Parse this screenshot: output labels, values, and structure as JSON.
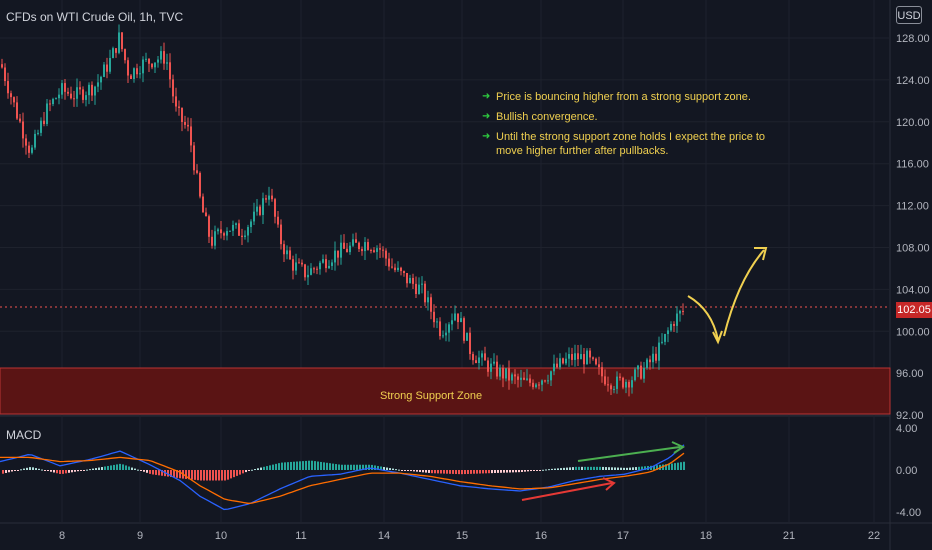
{
  "header": {
    "title": "CFDs on WTI Crude Oil, 1h, TVC",
    "currency": "USD"
  },
  "price_axis": {
    "ticks": [
      "128.00",
      "124.00",
      "120.00",
      "116.00",
      "112.00",
      "108.00",
      "104.00",
      "100.00",
      "96.00",
      "92.00"
    ],
    "current_price": "102.05"
  },
  "macd_axis": {
    "ticks": [
      "4.00",
      "0.00",
      "-4.00"
    ]
  },
  "indicator_label": "MACD",
  "time_axis": {
    "ticks": [
      "8",
      "9",
      "10",
      "11",
      "14",
      "15",
      "16",
      "17",
      "18",
      "21",
      "22"
    ]
  },
  "annotations": {
    "notes": [
      "Price is bouncing higher from a strong support zone.",
      "Bullish convergence.",
      "Until the strong support zone holds I expect the price to move higher further after pullbacks."
    ],
    "zone_label": "Strong Support Zone"
  },
  "colors": {
    "background": "#131722",
    "up": "#26a69a",
    "down": "#ef5350",
    "zone": "#5a1414",
    "text_note": "#f0d050",
    "price_tag": "#c62828"
  },
  "icons": {
    "note_bullet": "green-arrow-icon",
    "bounce": "curved-arrow-icon"
  }
}
